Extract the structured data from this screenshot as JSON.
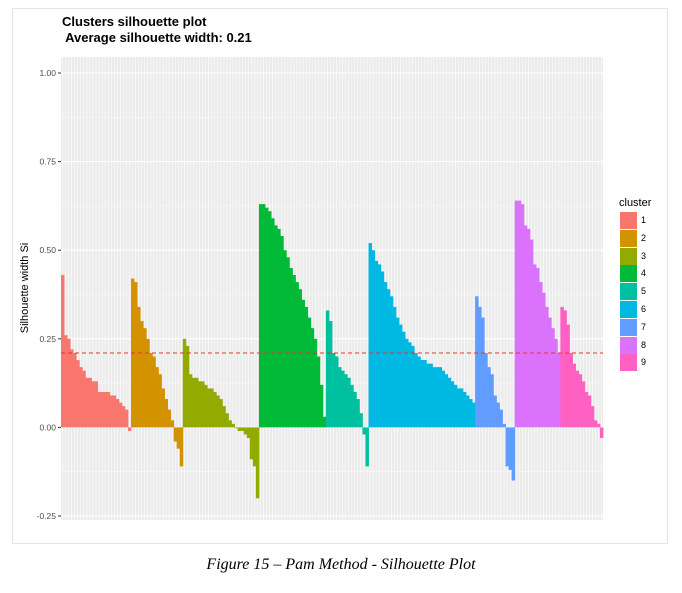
{
  "chart_data": {
    "type": "bar",
    "title": "Clusters silhouette plot",
    "subtitle": " Average silhouette width: 0.21",
    "ylabel": "Silhouette width Si",
    "xlabel": "",
    "ylim": [
      -0.25,
      1.0
    ],
    "yticks": [
      "-0.25",
      "0.00",
      "0.25",
      "0.50",
      "0.75",
      "1.00"
    ],
    "average_line": 0.21,
    "grid": true,
    "legend_title": "cluster",
    "legend_position": "right",
    "series": [
      {
        "name": "1",
        "color": "#F8766D",
        "values": [
          0.43,
          0.26,
          0.25,
          0.22,
          0.21,
          0.19,
          0.17,
          0.16,
          0.14,
          0.14,
          0.13,
          0.13,
          0.1,
          0.1,
          0.1,
          0.1,
          0.09,
          0.09,
          0.08,
          0.07,
          0.06,
          0.05,
          -0.01
        ]
      },
      {
        "name": "2",
        "color": "#D39200",
        "values": [
          0.42,
          0.41,
          0.34,
          0.3,
          0.28,
          0.25,
          0.21,
          0.2,
          0.17,
          0.15,
          0.11,
          0.08,
          0.05,
          0.02,
          -0.04,
          -0.06,
          -0.11
        ]
      },
      {
        "name": "3",
        "color": "#93AA00",
        "values": [
          0.25,
          0.23,
          0.15,
          0.14,
          0.14,
          0.13,
          0.13,
          0.12,
          0.11,
          0.11,
          0.1,
          0.09,
          0.08,
          0.06,
          0.04,
          0.02,
          0.01,
          0.0,
          -0.01,
          -0.01,
          -0.02,
          -0.03,
          -0.09,
          -0.11,
          -0.2
        ]
      },
      {
        "name": "4",
        "color": "#00BA38",
        "values": [
          0.63,
          0.63,
          0.62,
          0.61,
          0.59,
          0.57,
          0.56,
          0.54,
          0.5,
          0.48,
          0.45,
          0.43,
          0.41,
          0.39,
          0.36,
          0.34,
          0.31,
          0.28,
          0.25,
          0.2,
          0.12,
          0.03
        ]
      },
      {
        "name": "5",
        "color": "#00C19F",
        "values": [
          0.33,
          0.3,
          0.21,
          0.2,
          0.17,
          0.16,
          0.15,
          0.14,
          0.12,
          0.1,
          0.08,
          0.04,
          -0.02,
          -0.11
        ]
      },
      {
        "name": "6",
        "color": "#00B9E3",
        "values": [
          0.52,
          0.5,
          0.47,
          0.46,
          0.44,
          0.41,
          0.39,
          0.37,
          0.34,
          0.31,
          0.29,
          0.27,
          0.25,
          0.24,
          0.23,
          0.21,
          0.2,
          0.19,
          0.19,
          0.18,
          0.18,
          0.17,
          0.17,
          0.17,
          0.16,
          0.15,
          0.14,
          0.13,
          0.12,
          0.11,
          0.11,
          0.1,
          0.09,
          0.08,
          0.07
        ]
      },
      {
        "name": "7",
        "color": "#619CFF",
        "values": [
          0.37,
          0.34,
          0.31,
          0.21,
          0.17,
          0.15,
          0.09,
          0.07,
          0.05,
          0.01,
          -0.11,
          -0.12,
          -0.15
        ]
      },
      {
        "name": "8",
        "color": "#DB72FB",
        "values": [
          0.64,
          0.64,
          0.63,
          0.57,
          0.56,
          0.53,
          0.46,
          0.45,
          0.41,
          0.38,
          0.34,
          0.31,
          0.28,
          0.25,
          0.21
        ]
      },
      {
        "name": "9",
        "color": "#FF61C3",
        "values": [
          0.34,
          0.33,
          0.29,
          0.21,
          0.18,
          0.16,
          0.15,
          0.13,
          0.1,
          0.09,
          0.06,
          0.02,
          0.01,
          -0.03
        ]
      }
    ]
  },
  "caption": "Figure 15 – Pam Method - Silhouette Plot"
}
